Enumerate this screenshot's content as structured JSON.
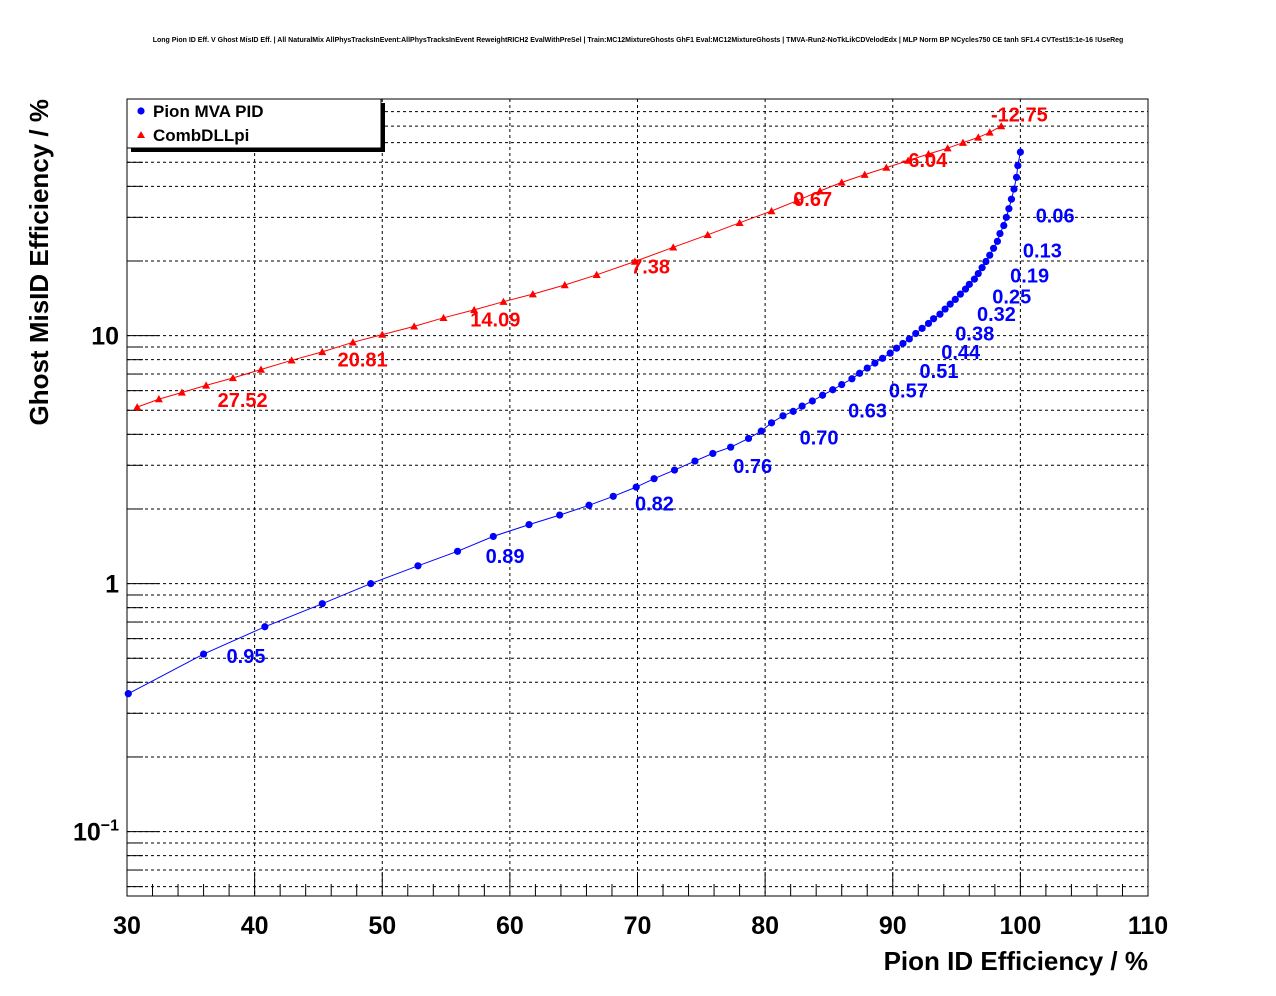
{
  "colors": {
    "pion": "#0000ff",
    "dll": "#ff0000",
    "grid": "#000000"
  },
  "chart_data": {
    "type": "line",
    "title": "Long Pion ID Eff. V Ghost MisID Eff. | All NaturalMix AllPhysTracksInEvent:AllPhysTracksInEvent ReweightRICH2 EvalWithPreSel | Train:MC12MixtureGhosts GhF1 Eval:MC12MixtureGhosts | TMVA-Run2-NoTkLikCDVelodEdx | MLP Norm BP NCycles750 CE tanh SF1.4 CVTest15:1e-16 !UseReg",
    "xlabel": "Pion ID Efficiency / %",
    "ylabel": "Ghost MisID Efficiency / %",
    "xlim": [
      30,
      110
    ],
    "ylim": [
      0.055,
      90
    ],
    "yscale": "log",
    "grid": true,
    "legend_position": "top-left",
    "x_ticks": [
      "30",
      "40",
      "50",
      "60",
      "70",
      "80",
      "90",
      "100",
      "110"
    ],
    "y_ticks": [
      {
        "value": 0.1,
        "base": "10",
        "exp": "−1"
      },
      {
        "value": 1,
        "base": "1",
        "exp": ""
      },
      {
        "value": 10,
        "base": "10",
        "exp": ""
      }
    ],
    "series": [
      {
        "name": "Pion MVA PID",
        "marker": "circle",
        "color": "#0000ff",
        "x": [
          30.1,
          36.0,
          40.8,
          45.3,
          49.1,
          52.8,
          55.9,
          58.7,
          61.5,
          63.9,
          66.2,
          68.1,
          69.9,
          71.3,
          72.9,
          74.5,
          75.9,
          77.3,
          78.7,
          79.7,
          80.5,
          81.4,
          82.2,
          82.9,
          83.7,
          84.5,
          85.3,
          86.0,
          86.8,
          87.4,
          88.0,
          88.6,
          89.2,
          89.8,
          90.3,
          90.8,
          91.3,
          91.8,
          92.3,
          92.8,
          93.2,
          93.7,
          94.1,
          94.5,
          94.9,
          95.3,
          95.7,
          96.0,
          96.4,
          96.7,
          97.0,
          97.3,
          97.6,
          97.9,
          98.2,
          98.4,
          98.7,
          98.9,
          99.1,
          99.3,
          99.5,
          99.7,
          99.8,
          100.0
        ],
        "y": [
          0.36,
          0.52,
          0.67,
          0.83,
          1.0,
          1.18,
          1.35,
          1.55,
          1.73,
          1.89,
          2.07,
          2.25,
          2.45,
          2.65,
          2.87,
          3.12,
          3.35,
          3.55,
          3.85,
          4.12,
          4.45,
          4.75,
          4.95,
          5.2,
          5.45,
          5.75,
          6.05,
          6.35,
          6.7,
          7.05,
          7.4,
          7.75,
          8.1,
          8.5,
          8.9,
          9.3,
          9.7,
          10.2,
          10.7,
          11.2,
          11.7,
          12.2,
          12.8,
          13.4,
          14.0,
          14.7,
          15.4,
          16.1,
          16.9,
          17.8,
          18.8,
          19.9,
          21.1,
          22.5,
          24.0,
          25.8,
          27.8,
          30.0,
          32.5,
          35.5,
          39.0,
          43.5,
          48.5,
          55.0
        ]
      },
      {
        "name": "CombDLLpi",
        "marker": "triangle",
        "color": "#ff0000",
        "x": [
          30.8,
          32.5,
          34.3,
          36.2,
          38.3,
          40.5,
          42.9,
          45.3,
          47.7,
          50.0,
          52.5,
          54.8,
          57.2,
          59.5,
          61.8,
          64.3,
          66.8,
          69.8,
          72.8,
          75.5,
          78.0,
          80.5,
          82.5,
          84.3,
          86.0,
          87.8,
          89.5,
          91.2,
          92.8,
          94.3,
          95.5,
          96.7,
          97.6,
          98.5
        ],
        "y": [
          5.15,
          5.55,
          5.9,
          6.3,
          6.75,
          7.3,
          7.95,
          8.6,
          9.4,
          10.1,
          10.9,
          11.8,
          12.7,
          13.7,
          14.7,
          16.0,
          17.6,
          19.9,
          22.7,
          25.5,
          28.5,
          31.8,
          35.0,
          38.3,
          41.5,
          44.6,
          47.6,
          50.8,
          54.0,
          57.0,
          60.0,
          63.0,
          66.0,
          70.0
        ]
      }
    ],
    "annotations": [
      {
        "series": "Pion MVA PID",
        "text": "0.06",
        "x": 101.2,
        "y": 30.5
      },
      {
        "series": "Pion MVA PID",
        "text": "0.13",
        "x": 100.2,
        "y": 22.0
      },
      {
        "series": "Pion MVA PID",
        "text": "0.19",
        "x": 99.2,
        "y": 17.5
      },
      {
        "series": "Pion MVA PID",
        "text": "0.25",
        "x": 97.8,
        "y": 14.4
      },
      {
        "series": "Pion MVA PID",
        "text": "0.32",
        "x": 96.6,
        "y": 12.2
      },
      {
        "series": "Pion MVA PID",
        "text": "0.38",
        "x": 94.9,
        "y": 10.2
      },
      {
        "series": "Pion MVA PID",
        "text": "0.44",
        "x": 93.8,
        "y": 8.6
      },
      {
        "series": "Pion MVA PID",
        "text": "0.51",
        "x": 92.1,
        "y": 7.2
      },
      {
        "series": "Pion MVA PID",
        "text": "0.57",
        "x": 89.7,
        "y": 6.0
      },
      {
        "series": "Pion MVA PID",
        "text": "0.63",
        "x": 86.5,
        "y": 5.0
      },
      {
        "series": "Pion MVA PID",
        "text": "0.70",
        "x": 82.7,
        "y": 3.88
      },
      {
        "series": "Pion MVA PID",
        "text": "0.76",
        "x": 77.5,
        "y": 2.98
      },
      {
        "series": "Pion MVA PID",
        "text": "0.82",
        "x": 69.8,
        "y": 2.1
      },
      {
        "series": "Pion MVA PID",
        "text": "0.89",
        "x": 58.1,
        "y": 1.29
      },
      {
        "series": "Pion MVA PID",
        "text": "0.95",
        "x": 37.8,
        "y": 0.51
      },
      {
        "series": "CombDLLpi",
        "text": "-12.75",
        "x": 97.7,
        "y": 78.0
      },
      {
        "series": "CombDLLpi",
        "text": "-6.04",
        "x": 90.7,
        "y": 51.0
      },
      {
        "series": "CombDLLpi",
        "text": "0.67",
        "x": 82.2,
        "y": 35.5
      },
      {
        "series": "CombDLLpi",
        "text": "7.38",
        "x": 69.5,
        "y": 19.0
      },
      {
        "series": "CombDLLpi",
        "text": "14.09",
        "x": 56.9,
        "y": 11.6
      },
      {
        "series": "CombDLLpi",
        "text": "20.81",
        "x": 46.5,
        "y": 8.0
      },
      {
        "series": "CombDLLpi",
        "text": "27.52",
        "x": 37.1,
        "y": 5.5
      }
    ]
  }
}
